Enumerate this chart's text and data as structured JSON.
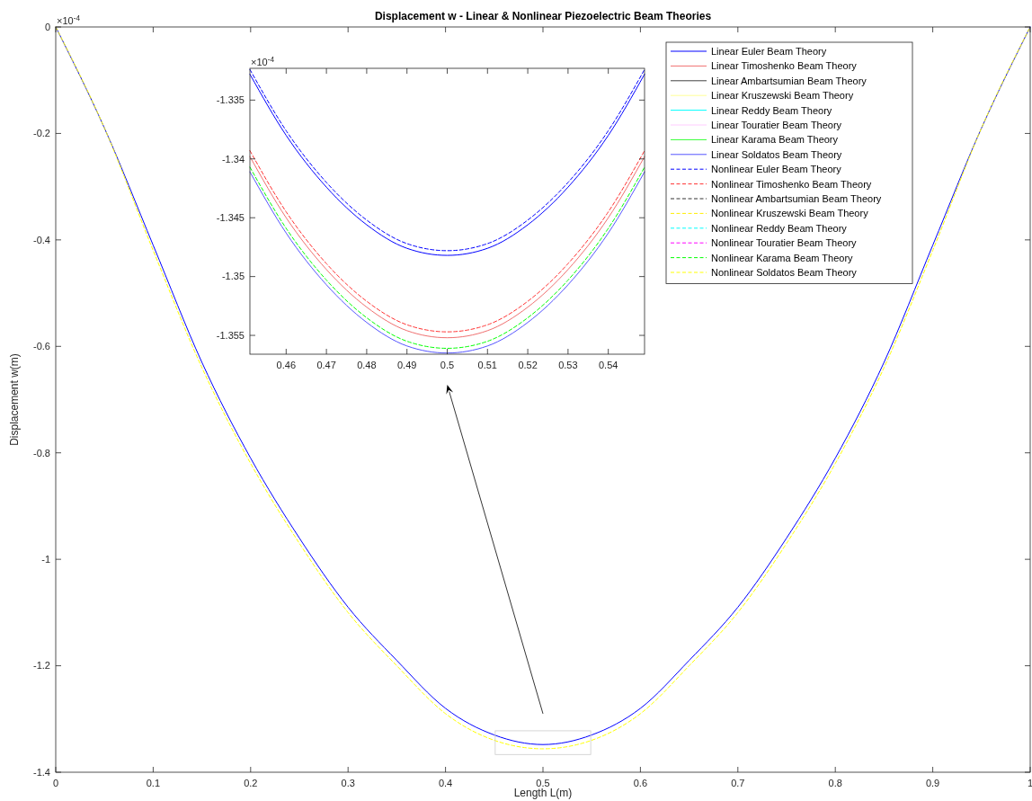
{
  "chart_data": [
    {
      "type": "line",
      "title": "Displacement w - Linear & Nonlinear Piezoelectric Beam Theories",
      "xlabel": "Length L(m)",
      "ylabel": "Displacement w(m)",
      "annotations": [
        "×10$^{-4}$"
      ],
      "legend": "top right",
      "x": [
        0,
        0.05,
        0.1,
        0.15,
        0.2,
        0.25,
        0.3,
        0.35,
        0.4,
        0.45,
        0.5,
        0.55,
        0.6,
        0.65,
        0.7,
        0.75,
        0.8,
        0.85,
        0.9,
        0.95,
        1
      ],
      "xlim": [
        0,
        1
      ],
      "xticks": [
        0,
        0.1,
        0.2,
        0.3,
        0.4,
        0.5,
        0.6,
        0.7,
        0.8,
        0.9,
        1
      ],
      "ylim": [
        -1.4,
        0
      ],
      "yticks": [
        0,
        -0.2,
        -0.4,
        -0.6,
        -0.8,
        -1,
        -1.2,
        -1.4
      ],
      "series": [
        {
          "name": "Linear Euler Beam Theory",
          "color": "#0000ff",
          "line_style": "solid",
          "values": [
            0,
            -0.19,
            -0.41,
            -0.63,
            -0.81,
            -0.96,
            -1.09,
            -1.19,
            -1.28,
            -1.33,
            -1.348,
            -1.33,
            -1.28,
            -1.19,
            -1.09,
            -0.96,
            -0.81,
            -0.63,
            -0.41,
            -0.19,
            0
          ]
        },
        {
          "name": "Linear Timoshenko Beam Theory",
          "color": "#f07070",
          "line_style": "solid",
          "values": [
            null,
            null,
            null,
            null,
            null,
            null,
            null,
            null,
            null,
            null,
            null,
            null,
            null,
            null,
            null,
            null,
            null,
            null,
            null,
            null,
            null
          ]
        },
        {
          "name": "Linear Ambartsumian Beam Theory",
          "color": "#404040",
          "line_style": "solid",
          "values": [
            null,
            null,
            null,
            null,
            null,
            null,
            null,
            null,
            null,
            null,
            null,
            null,
            null,
            null,
            null,
            null,
            null,
            null,
            null,
            null,
            null
          ]
        },
        {
          "name": "Linear Kruszewski Beam Theory",
          "color": "#ffff99",
          "line_style": "solid",
          "values": [
            null,
            null,
            null,
            null,
            null,
            null,
            null,
            null,
            null,
            null,
            null,
            null,
            null,
            null,
            null,
            null,
            null,
            null,
            null,
            null,
            null
          ]
        },
        {
          "name": "Linear Reddy Beam Theory",
          "color": "#00ffff",
          "line_style": "solid",
          "values": [
            null,
            null,
            null,
            null,
            null,
            null,
            null,
            null,
            null,
            null,
            null,
            null,
            null,
            null,
            null,
            null,
            null,
            null,
            null,
            null,
            null
          ]
        },
        {
          "name": "Linear Touratier Beam Theory",
          "color": "#ffccff",
          "line_style": "solid",
          "values": [
            null,
            null,
            null,
            null,
            null,
            null,
            null,
            null,
            null,
            null,
            null,
            null,
            null,
            null,
            null,
            null,
            null,
            null,
            null,
            null,
            null
          ]
        },
        {
          "name": "Linear Karama Beam Theory",
          "color": "#33ff33",
          "line_style": "solid",
          "values": [
            null,
            null,
            null,
            null,
            null,
            null,
            null,
            null,
            null,
            null,
            null,
            null,
            null,
            null,
            null,
            null,
            null,
            null,
            null,
            null,
            null
          ]
        },
        {
          "name": "Linear Soldatos Beam Theory",
          "color": "#5555ff",
          "line_style": "solid",
          "values": [
            null,
            null,
            null,
            null,
            null,
            null,
            null,
            null,
            null,
            null,
            null,
            null,
            null,
            null,
            null,
            null,
            null,
            null,
            null,
            null,
            null
          ]
        },
        {
          "name": "Nonlinear Euler Beam Theory",
          "color": "#0000ff",
          "line_style": "dashed",
          "values": [
            null,
            null,
            null,
            null,
            null,
            null,
            null,
            null,
            null,
            null,
            null,
            null,
            null,
            null,
            null,
            null,
            null,
            null,
            null,
            null,
            null
          ]
        },
        {
          "name": "Nonlinear Timoshenko Beam Theory",
          "color": "#ff3333",
          "line_style": "dashed",
          "values": [
            null,
            null,
            null,
            null,
            null,
            null,
            null,
            null,
            null,
            null,
            null,
            null,
            null,
            null,
            null,
            null,
            null,
            null,
            null,
            null,
            null
          ]
        },
        {
          "name": "Nonlinear Ambartsumian Beam Theory",
          "color": "#333333",
          "line_style": "dashed",
          "values": [
            null,
            null,
            null,
            null,
            null,
            null,
            null,
            null,
            null,
            null,
            null,
            null,
            null,
            null,
            null,
            null,
            null,
            null,
            null,
            null,
            null
          ]
        },
        {
          "name": "Nonlinear Kruszewski Beam Theory",
          "color": "#ffee00",
          "line_style": "dashed",
          "values": [
            null,
            null,
            null,
            null,
            null,
            null,
            null,
            null,
            null,
            null,
            null,
            null,
            null,
            null,
            null,
            null,
            null,
            null,
            null,
            null,
            null
          ]
        },
        {
          "name": "Nonlinear Reddy Beam Theory",
          "color": "#00ffff",
          "line_style": "dashed",
          "values": [
            null,
            null,
            null,
            null,
            null,
            null,
            null,
            null,
            null,
            null,
            null,
            null,
            null,
            null,
            null,
            null,
            null,
            null,
            null,
            null,
            null
          ]
        },
        {
          "name": "Nonlinear Touratier Beam Theory",
          "color": "#ff00ff",
          "line_style": "dashed",
          "values": [
            null,
            null,
            null,
            null,
            null,
            null,
            null,
            null,
            null,
            null,
            null,
            null,
            null,
            null,
            null,
            null,
            null,
            null,
            null,
            null,
            null
          ]
        },
        {
          "name": "Nonlinear Karama Beam Theory",
          "color": "#00ff00",
          "line_style": "dashed",
          "values": [
            null,
            null,
            null,
            null,
            null,
            null,
            null,
            null,
            null,
            null,
            null,
            null,
            null,
            null,
            null,
            null,
            null,
            null,
            null,
            null,
            null
          ]
        },
        {
          "name": "Nonlinear Soldatos Beam Theory",
          "color": "#ffff00",
          "line_style": "dashed",
          "values": [
            0,
            -0.19,
            -0.42,
            -0.64,
            -0.82,
            -0.97,
            -1.1,
            -1.2,
            -1.29,
            -1.34,
            -1.356,
            -1.34,
            -1.29,
            -1.2,
            -1.1,
            -0.97,
            -0.82,
            -0.64,
            -0.42,
            -0.19,
            0
          ]
        }
      ]
    },
    {
      "type": "line",
      "annotations": [
        "×10$^{-4}$"
      ],
      "x": [
        0.451,
        0.46,
        0.47,
        0.48,
        0.49,
        0.5,
        0.51,
        0.52,
        0.53,
        0.54,
        0.549
      ],
      "xlim": [
        0.451,
        0.549
      ],
      "xticks": [
        0.46,
        0.47,
        0.48,
        0.49,
        0.5,
        0.51,
        0.52,
        0.53,
        0.54
      ],
      "ylim": [
        -1.3566,
        -1.3323
      ],
      "yticks": [
        -1.335,
        -1.34,
        -1.345,
        -1.35,
        -1.355
      ],
      "series": [
        {
          "color": "#0000ff",
          "line_style": "solid",
          "values": [
            -1.3328,
            -1.338,
            -1.3424,
            -1.3456,
            -1.3476,
            -1.3482,
            -1.3476,
            -1.3456,
            -1.3424,
            -1.338,
            -1.3328
          ]
        },
        {
          "color": "#f07070",
          "line_style": "solid",
          "values": [
            -1.3398,
            -1.345,
            -1.3494,
            -1.3526,
            -1.3546,
            -1.3552,
            -1.3546,
            -1.3526,
            -1.3494,
            -1.345,
            -1.3398
          ]
        },
        {
          "color": "#5555ff",
          "line_style": "solid",
          "values": [
            -1.3411,
            -1.3463,
            -1.3507,
            -1.3539,
            -1.3559,
            -1.3565,
            -1.3559,
            -1.3539,
            -1.3507,
            -1.3463,
            -1.3411
          ]
        },
        {
          "color": "#0000ff",
          "line_style": "dashed",
          "values": [
            -1.3324,
            -1.3376,
            -1.342,
            -1.3452,
            -1.3472,
            -1.3478,
            -1.3472,
            -1.3452,
            -1.342,
            -1.3376,
            -1.3324
          ]
        },
        {
          "color": "#ff3333",
          "line_style": "dashed",
          "values": [
            -1.3393,
            -1.3445,
            -1.3489,
            -1.3521,
            -1.3541,
            -1.3547,
            -1.3541,
            -1.3521,
            -1.3489,
            -1.3445,
            -1.3393
          ]
        },
        {
          "color": "#00ff00",
          "line_style": "dashed",
          "values": [
            -1.3407,
            -1.3459,
            -1.3503,
            -1.3535,
            -1.3555,
            -1.3561,
            -1.3555,
            -1.3535,
            -1.3503,
            -1.3459,
            -1.3407
          ]
        }
      ]
    }
  ]
}
